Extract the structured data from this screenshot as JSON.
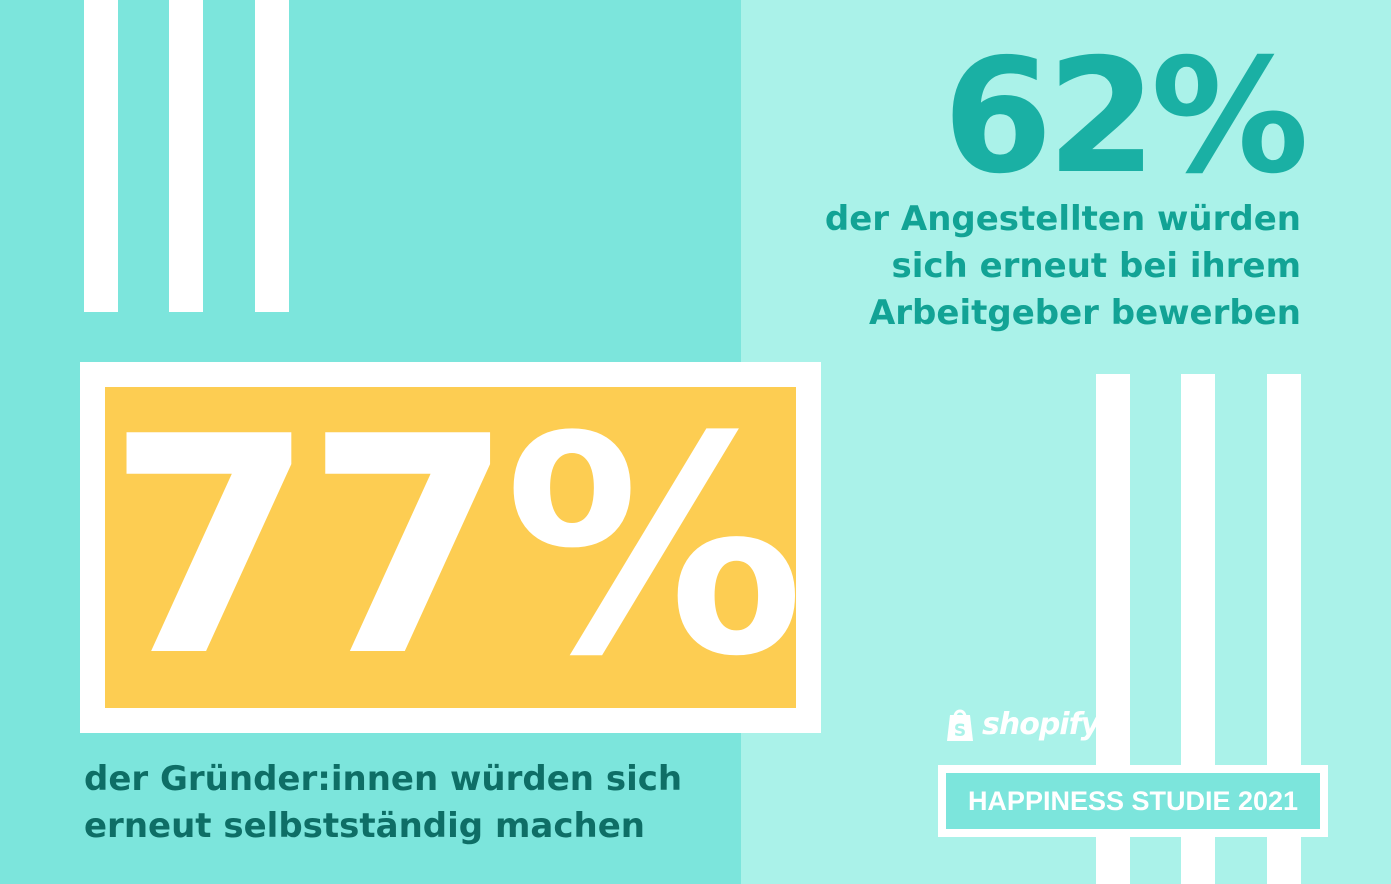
{
  "employees_stat": {
    "percent": "62%",
    "caption_lines": [
      "der Angestellten würden",
      "sich erneut bei ihrem",
      "Arbeitgeber bewerben"
    ]
  },
  "founders_stat": {
    "percent": "77%",
    "caption_lines": [
      "der Gründer:innen würden sich",
      "erneut selbstständig machen"
    ]
  },
  "brand": {
    "logo_text": "shopify",
    "logo_icon": "shopify-bag-icon"
  },
  "badge": {
    "label": "HAPPINESS STUDIE 2021"
  },
  "colors": {
    "teal_dark": "#1ab0a4",
    "teal_light": "#aaf2e9",
    "teal_mid": "#7ce5dc",
    "yellow": "#fdcd52",
    "text_dark": "#0e6e66"
  }
}
